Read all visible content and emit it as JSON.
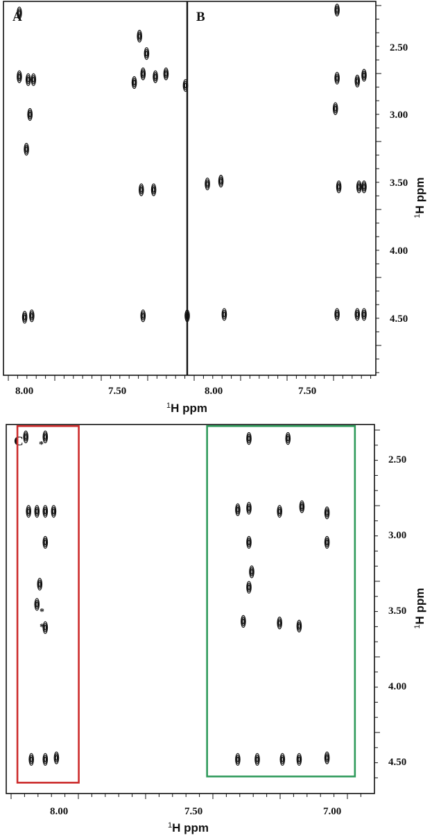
{
  "chart_data": [
    {
      "type": "scatter",
      "panel": "A",
      "xlabel": "1H ppm",
      "ylabel": "1H ppm",
      "xlim": [
        8.16,
        7.12
      ],
      "ylim": [
        4.9,
        2.32
      ],
      "x_ticks": [
        "8.00",
        "7.50"
      ],
      "y_ticks": [
        "2.50",
        "3.00",
        "3.50",
        "4.00",
        "4.50"
      ],
      "peaks": [
        {
          "x": 8.07,
          "y": 2.4
        },
        {
          "x": 8.07,
          "y": 2.84
        },
        {
          "x": 8.02,
          "y": 2.86
        },
        {
          "x": 7.99,
          "y": 2.86
        },
        {
          "x": 8.01,
          "y": 3.1
        },
        {
          "x": 8.03,
          "y": 3.34
        },
        {
          "x": 8.04,
          "y": 4.5
        },
        {
          "x": 8.0,
          "y": 4.49
        },
        {
          "x": 7.39,
          "y": 2.56
        },
        {
          "x": 7.37,
          "y": 2.82
        },
        {
          "x": 7.42,
          "y": 2.88
        },
        {
          "x": 7.3,
          "y": 2.84
        },
        {
          "x": 7.24,
          "y": 2.82
        },
        {
          "x": 7.35,
          "y": 2.68
        },
        {
          "x": 7.13,
          "y": 2.9
        },
        {
          "x": 7.38,
          "y": 3.62
        },
        {
          "x": 7.31,
          "y": 3.62
        },
        {
          "x": 7.37,
          "y": 4.49
        },
        {
          "x": 7.12,
          "y": 4.49
        }
      ]
    },
    {
      "type": "scatter",
      "panel": "B",
      "xlabel": "1H ppm",
      "ylabel": "1H ppm",
      "xlim": [
        8.16,
        7.04
      ],
      "ylim": [
        4.9,
        2.32
      ],
      "x_ticks": [
        "8.00",
        "7.50"
      ],
      "y_ticks": [
        "2.50",
        "3.00",
        "3.50",
        "4.00",
        "4.50"
      ],
      "peaks": [
        {
          "x": 8.04,
          "y": 3.58
        },
        {
          "x": 7.96,
          "y": 3.56
        },
        {
          "x": 7.94,
          "y": 4.48
        },
        {
          "x": 7.27,
          "y": 2.38
        },
        {
          "x": 7.27,
          "y": 2.85
        },
        {
          "x": 7.28,
          "y": 3.06
        },
        {
          "x": 7.26,
          "y": 3.6
        },
        {
          "x": 7.27,
          "y": 4.48
        },
        {
          "x": 7.15,
          "y": 2.87
        },
        {
          "x": 7.11,
          "y": 2.83
        },
        {
          "x": 7.14,
          "y": 3.6
        },
        {
          "x": 7.11,
          "y": 3.6
        },
        {
          "x": 7.15,
          "y": 4.48
        },
        {
          "x": 7.11,
          "y": 4.48
        }
      ]
    },
    {
      "type": "scatter",
      "panel": "C",
      "xlabel": "1H ppm",
      "ylabel": "1H ppm",
      "xlim": [
        8.14,
        6.82
      ],
      "ylim": [
        4.7,
        2.32
      ],
      "x_ticks": [
        "8.00",
        "7.50",
        "7.00"
      ],
      "y_ticks": [
        "2.50",
        "3.00",
        "3.50",
        "4.00",
        "4.50"
      ],
      "annotations": [
        "*",
        "*",
        "*"
      ],
      "highlight_boxes": [
        {
          "color": "#cc2b2b",
          "x_range": [
            8.1,
            7.88
          ],
          "y_range": [
            2.33,
            4.63
          ]
        },
        {
          "color": "#2e9a5a",
          "x_range": [
            7.42,
            6.89
          ],
          "y_range": [
            2.33,
            4.59
          ]
        }
      ],
      "peaks": [
        {
          "x": 8.07,
          "y": 2.4
        },
        {
          "x": 8.0,
          "y": 2.4
        },
        {
          "x": 8.06,
          "y": 2.88
        },
        {
          "x": 8.03,
          "y": 2.88
        },
        {
          "x": 8.0,
          "y": 2.88
        },
        {
          "x": 7.97,
          "y": 2.88
        },
        {
          "x": 8.0,
          "y": 3.08
        },
        {
          "x": 8.02,
          "y": 3.35
        },
        {
          "x": 8.03,
          "y": 3.48
        },
        {
          "x": 8.0,
          "y": 3.63
        },
        {
          "x": 8.05,
          "y": 4.48
        },
        {
          "x": 8.0,
          "y": 4.48
        },
        {
          "x": 7.96,
          "y": 4.47
        },
        {
          "x": 7.27,
          "y": 2.41
        },
        {
          "x": 7.13,
          "y": 2.41
        },
        {
          "x": 7.31,
          "y": 2.87
        },
        {
          "x": 7.27,
          "y": 2.86
        },
        {
          "x": 7.16,
          "y": 2.88
        },
        {
          "x": 7.08,
          "y": 2.85
        },
        {
          "x": 6.99,
          "y": 2.89
        },
        {
          "x": 7.27,
          "y": 3.08
        },
        {
          "x": 6.99,
          "y": 3.08
        },
        {
          "x": 7.26,
          "y": 3.27
        },
        {
          "x": 7.27,
          "y": 3.37
        },
        {
          "x": 7.29,
          "y": 3.59
        },
        {
          "x": 7.16,
          "y": 3.6
        },
        {
          "x": 7.09,
          "y": 3.62
        },
        {
          "x": 7.31,
          "y": 4.48
        },
        {
          "x": 7.24,
          "y": 4.48
        },
        {
          "x": 7.15,
          "y": 4.48
        },
        {
          "x": 7.09,
          "y": 4.48
        },
        {
          "x": 6.99,
          "y": 4.47
        }
      ]
    }
  ]
}
